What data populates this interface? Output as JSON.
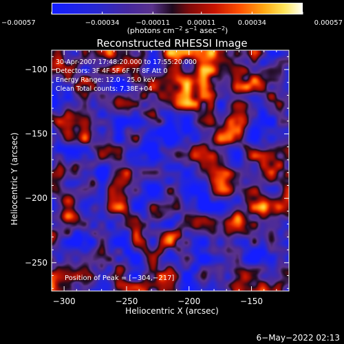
{
  "chart_data": {
    "type": "heatmap",
    "title": "Reconstructed RHESSI Image",
    "xlabel": "Heliocentric X (arcsec)",
    "ylabel": "Heliocentric Y (arcsec)",
    "xlim": [
      -310,
      -120
    ],
    "ylim": [
      -272,
      -85
    ],
    "xticks": [
      -300,
      -250,
      -200,
      -150
    ],
    "xtick_labels": [
      "−300",
      "−250",
      "−200",
      "−150"
    ],
    "yticks": [
      -100,
      -150,
      -200,
      -250
    ],
    "ytick_labels": [
      "−100",
      "−150",
      "−200",
      "−250"
    ],
    "colorbar": {
      "min": -0.00057,
      "max": 0.00057,
      "ticks": [
        -0.00057,
        -0.00034,
        -0.00011,
        0.00011,
        0.00034,
        0.00057
      ],
      "tick_labels": [
        "−0.00057",
        "−0.00034",
        "−0.00011",
        "0.00011",
        "0.00034",
        "0.00057"
      ],
      "unit_prefix": "(photons cm",
      "unit_exp1": "−2",
      "unit_mid": " s",
      "unit_exp2": "−1",
      "unit_mid2": " asec",
      "unit_exp3": "−2",
      "unit_suffix": ")"
    },
    "header_lines": [
      "30-Apr-2007 17:48:20.000 to 17:55:20.000",
      "Detectors: 3F 4F 5F 6F 7F 8F Att 0",
      "Energy Range: 12.0 - 25.0 keV",
      "Clean      Total counts: 7.38E+04"
    ],
    "peak_label": "Position of Peak = [−304,−217]",
    "peak": [
      -304,
      -217
    ]
  },
  "footer": {
    "date": "6−May−2022 02:13"
  }
}
